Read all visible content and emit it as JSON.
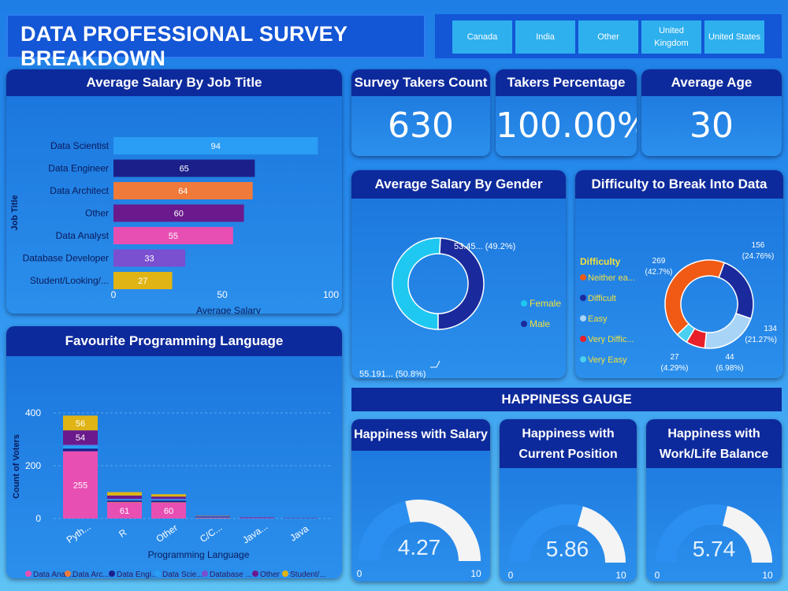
{
  "header": {
    "title": "DATA PROFESSIONAL SURVEY BREAKDOWN"
  },
  "slicer": {
    "options": [
      "Canada",
      "India",
      "Other",
      "United Kingdom",
      "United States"
    ]
  },
  "kpis": [
    {
      "label": "Survey Takers Count",
      "value": "630"
    },
    {
      "label": "Takers Percentage",
      "value": "100.00%"
    },
    {
      "label": "Average Age",
      "value": "30"
    }
  ],
  "happiness_title": "HAPPINESS GAUGE",
  "colors": {
    "data_analyst": "#e84fb3",
    "data_architect": "#f07a3a",
    "data_engineer": "#1a1f8a",
    "data_scientist": "#2a9df4",
    "database_developer": "#7a4fd0",
    "other": "#6a1a8c",
    "student": "#e0b414",
    "female": "#1ec8f0",
    "male": "#1a2a9c",
    "neither": "#f05a14",
    "difficult": "#1a2a9c",
    "easy": "#a8d4f8",
    "very_difficult": "#e8202a",
    "very_easy": "#4ad0f0",
    "gauge_fill": "#2a8ff0",
    "gauge_rest": "#f4f4f4"
  },
  "chart_data": [
    {
      "type": "bar",
      "title": "Average Salary By Job Title",
      "orientation": "horizontal",
      "xlabel": "Average Salary",
      "ylabel": "Job Title",
      "categories": [
        "Data Scientist",
        "Data Engineer",
        "Data Architect",
        "Other",
        "Data Analyst",
        "Database Developer",
        "Student/Looking/..."
      ],
      "values": [
        94,
        65,
        64,
        60,
        55,
        33,
        27
      ],
      "xlim": [
        0,
        100
      ],
      "xticks": [
        "0",
        "50",
        "100"
      ]
    },
    {
      "type": "bar",
      "title": "Favourite Programming Language",
      "stacked": true,
      "xlabel": "Programming Language",
      "ylabel": "Count of Voters",
      "categories": [
        "Pyth...",
        "R",
        "Other",
        "C/C...",
        "Java...",
        "Java"
      ],
      "ylim": [
        0,
        430
      ],
      "yticks": [
        "0",
        "200",
        "400"
      ],
      "series": [
        {
          "name": "Data Anal...",
          "values": [
            255,
            61,
            60,
            2,
            2,
            1
          ]
        },
        {
          "name": "Data Arc...",
          "values": [
            0,
            2,
            2,
            1,
            0,
            0
          ]
        },
        {
          "name": "Data Engi...",
          "values": [
            10,
            5,
            6,
            2,
            1,
            1
          ]
        },
        {
          "name": "Data Scie...",
          "values": [
            12,
            5,
            5,
            2,
            1,
            0
          ]
        },
        {
          "name": "Database ...",
          "values": [
            3,
            2,
            2,
            1,
            1,
            0
          ]
        },
        {
          "name": "Other",
          "values": [
            54,
            12,
            8,
            2,
            1,
            0
          ]
        },
        {
          "name": "Student/...",
          "values": [
            56,
            13,
            9,
            1,
            0,
            0
          ]
        }
      ],
      "data_labels": [
        [
          255,
          54,
          56
        ],
        [
          61
        ],
        [
          60
        ]
      ]
    },
    {
      "type": "pie",
      "title": "Average Salary By Gender",
      "donut": true,
      "slices": [
        {
          "name": "Female",
          "value": 55.191,
          "label": "55.191... (50.8%)"
        },
        {
          "name": "Male",
          "value": 53.45,
          "label": "53.45... (49.2%)"
        }
      ]
    },
    {
      "type": "pie",
      "title": "Difficulty to Break Into Data",
      "donut": true,
      "legend_title": "Difficulty",
      "legend": [
        "Neither ea...",
        "Difficult",
        "Easy",
        "Very Diffic...",
        "Very Easy"
      ],
      "slices": [
        {
          "name": "Difficult",
          "value": 156,
          "label": "156",
          "pct": "(24.76%)"
        },
        {
          "name": "Easy",
          "value": 134,
          "label": "134",
          "pct": "(21.27%)"
        },
        {
          "name": "Very Difficult",
          "value": 44,
          "label": "44",
          "pct": "(6.98%)"
        },
        {
          "name": "Very Easy",
          "value": 27,
          "label": "27",
          "pct": "(4.29%)"
        },
        {
          "name": "Neither easy nor difficult",
          "value": 269,
          "label": "269",
          "pct": "(42.7%)"
        }
      ]
    },
    {
      "type": "gauge",
      "title": "Happiness with Salary",
      "value": 4.27,
      "value_label": "4.27",
      "min": 0,
      "max": 10,
      "min_label": "0",
      "max_label": "10"
    },
    {
      "type": "gauge",
      "title": "Happiness with Current Position",
      "value": 5.86,
      "value_label": "5.86",
      "min": 0,
      "max": 10,
      "min_label": "0",
      "max_label": "10"
    },
    {
      "type": "gauge",
      "title": "Happiness with Work/Life Balance",
      "value": 5.74,
      "value_label": "5.74",
      "min": 0,
      "max": 10,
      "min_label": "0",
      "max_label": "10"
    }
  ]
}
